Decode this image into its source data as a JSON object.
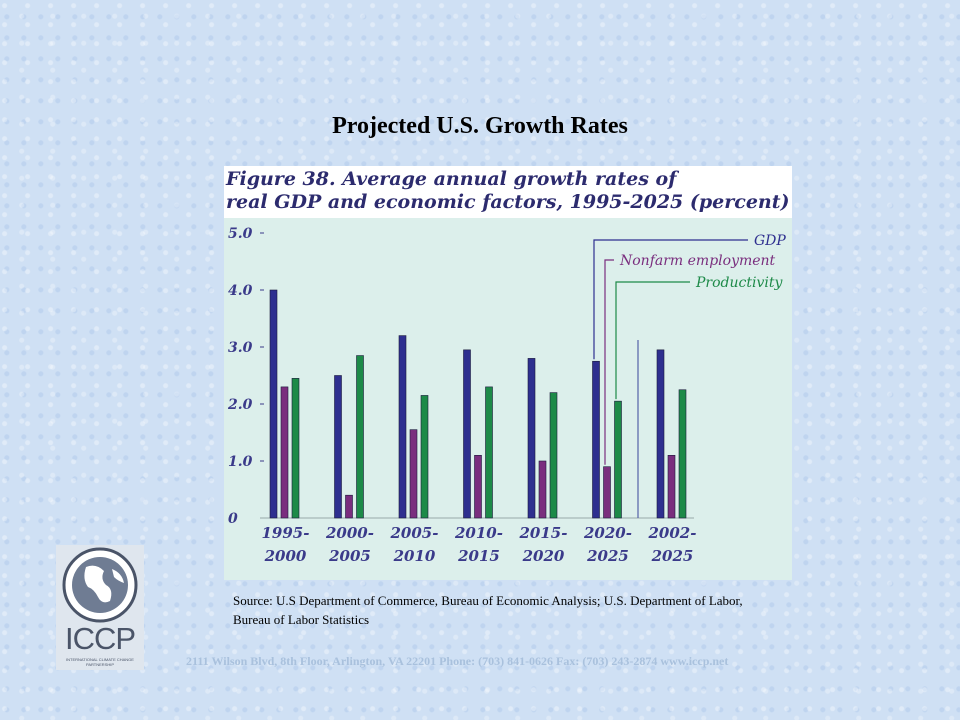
{
  "slide": {
    "title": "Projected U.S. Growth Rates",
    "source": "Source: U.S Department of Commerce, Bureau of Economic Analysis; U.S. Department of Labor, Bureau of Labor Statistics",
    "footer": "2111 Wilson Blvd, 8th Floor, Arlington, VA 22201 Phone: (703) 841-0626 Fax: (703) 243-2874 www.iccp.net",
    "logo_text": "ICCP",
    "logo_subtext": "INTERNATIONAL CLIMATE CHANGE PARTNERSHIP"
  },
  "chart_data": {
    "type": "bar",
    "title": "Figure 38. Average annual growth rates of\nreal GDP and economic factors, 1995-2025 (percent)",
    "xlabel": "",
    "ylabel": "",
    "ylim": [
      0,
      5
    ],
    "yticks": [
      "0",
      "1.0",
      "2.0",
      "3.0",
      "4.0",
      "5.0"
    ],
    "ytick_values": [
      0,
      1,
      2,
      3,
      4,
      5
    ],
    "categories": [
      [
        "1995-",
        "2000"
      ],
      [
        "2000-",
        "2005"
      ],
      [
        "2005-",
        "2010"
      ],
      [
        "2010-",
        "2015"
      ],
      [
        "2015-",
        "2020"
      ],
      [
        "2020-",
        "2025"
      ],
      [
        "2002-",
        "2025"
      ]
    ],
    "series": [
      {
        "name": "GDP",
        "color": "#2e2f8f",
        "values": [
          4.0,
          2.5,
          3.2,
          2.95,
          2.8,
          2.75,
          2.95
        ]
      },
      {
        "name": "Nonfarm employment",
        "color": "#7a2e7e",
        "values": [
          2.3,
          0.4,
          1.55,
          1.1,
          1.0,
          0.9,
          1.1
        ]
      },
      {
        "name": "Productivity",
        "color": "#1d8a48",
        "values": [
          2.45,
          2.85,
          2.15,
          2.3,
          2.2,
          2.05,
          2.25
        ]
      }
    ],
    "legend_placement": "top-right",
    "grid": false
  }
}
